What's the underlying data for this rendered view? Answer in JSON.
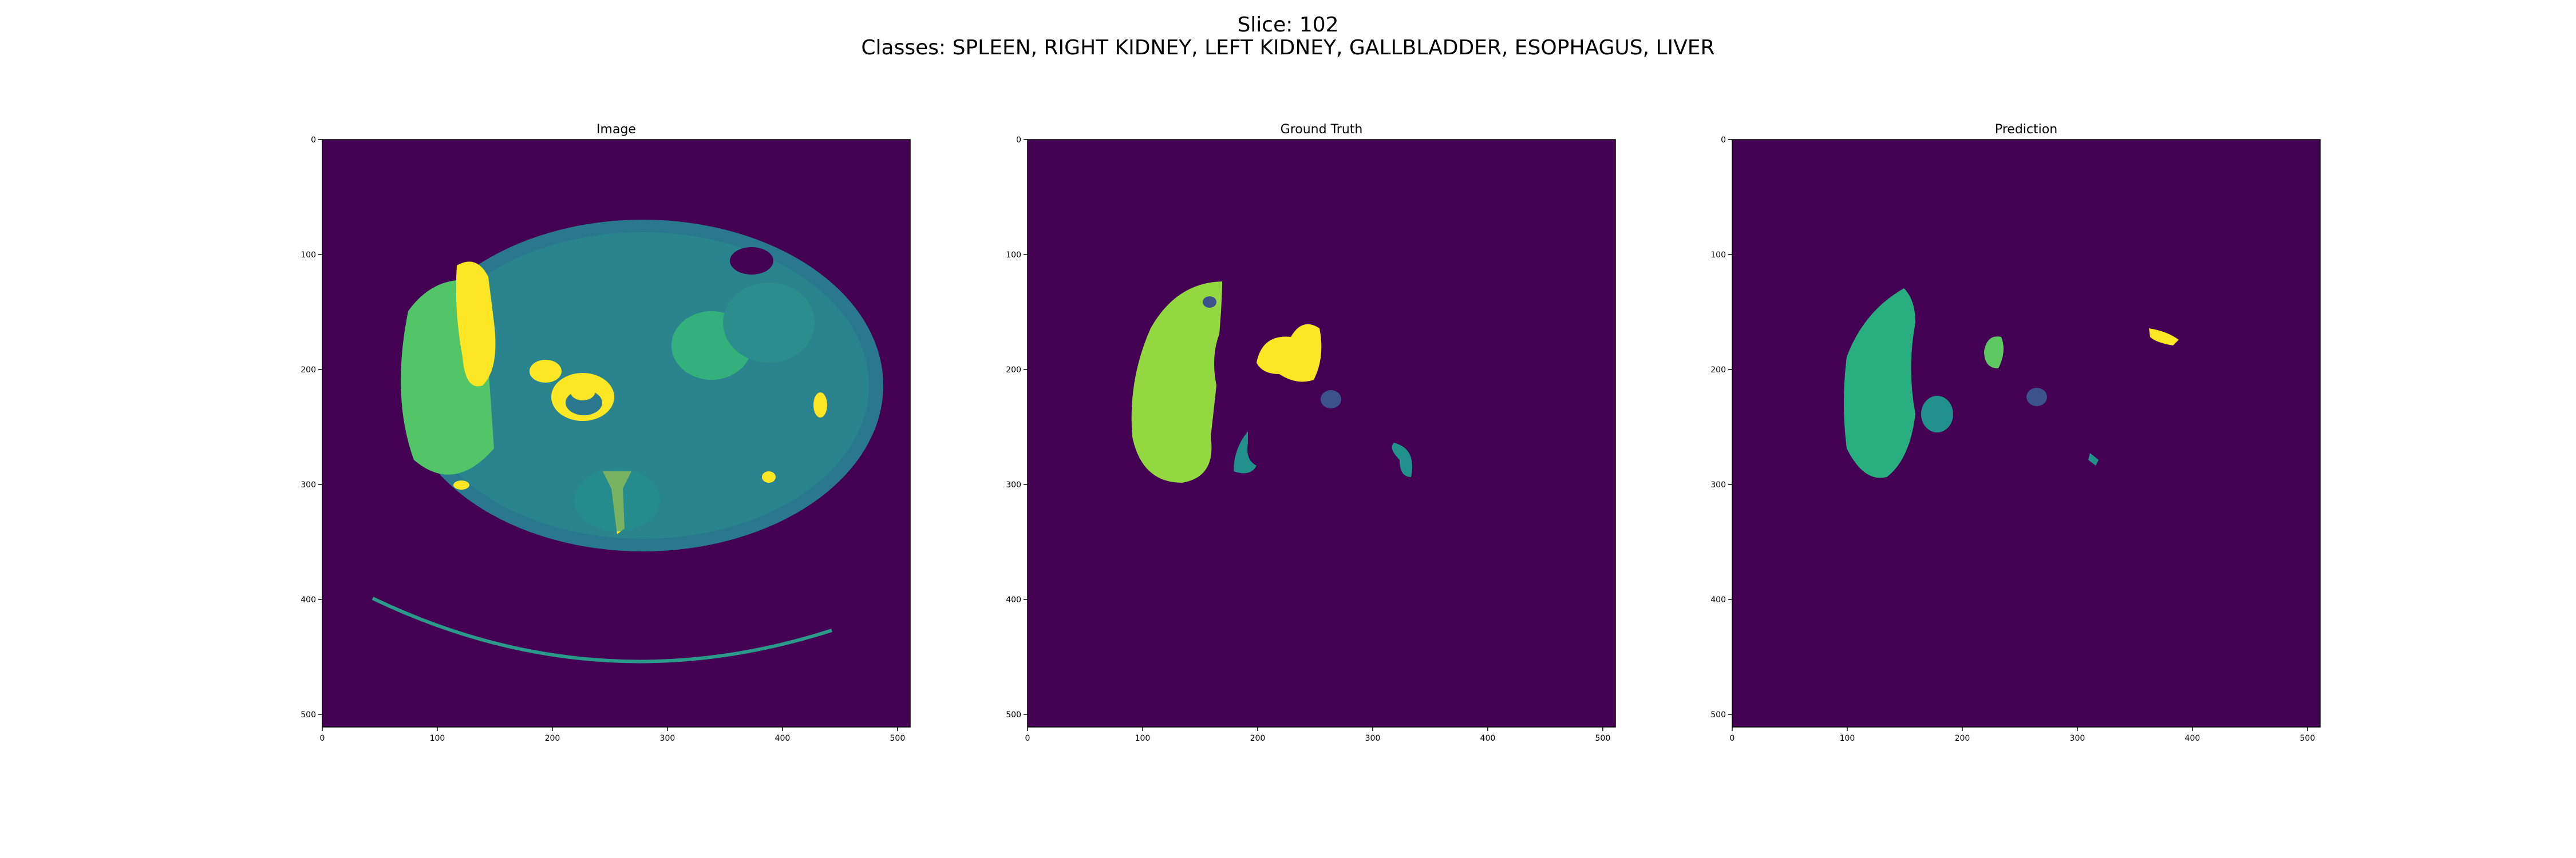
{
  "header": {
    "slice": "Slice: 102",
    "classes": "Classes: SPLEEN, RIGHT KIDNEY, LEFT KIDNEY, GALLBLADDER, ESOPHAGUS, LIVER"
  },
  "panels": [
    {
      "title": "Image"
    },
    {
      "title": "Ground Truth"
    },
    {
      "title": "Prediction"
    }
  ],
  "axes": {
    "xticks": [
      "0",
      "100",
      "200",
      "300",
      "400",
      "500"
    ],
    "yticks": [
      "0",
      "100",
      "200",
      "300",
      "400",
      "500"
    ],
    "range": [
      0,
      511
    ]
  },
  "colors": {
    "background": "#440154",
    "body": "#2a788e",
    "liver_gt": "#93d741",
    "liver_pred": "#29af7f",
    "kidney_pred": "#21918c",
    "gallbladder": "#fde725",
    "spleen_small": "#3b528b",
    "esophagus": "#5ec962"
  }
}
